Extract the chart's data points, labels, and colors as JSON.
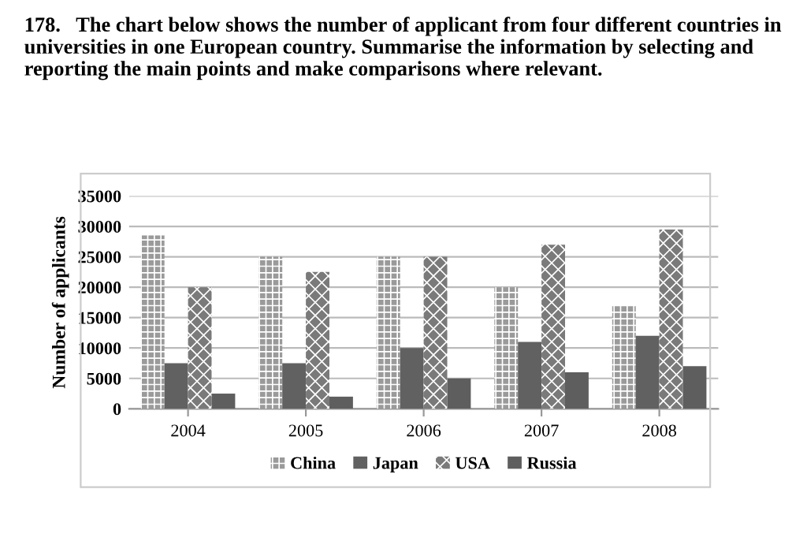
{
  "chart_data": {
    "type": "bar",
    "title": "178.   The chart below shows the number of applicant from four different countries in universities in one European country. Summarise the information by selecting and reporting the main points and make comparisons where relevant.",
    "ylabel": "Number of applicants",
    "categories": [
      "2004",
      "2005",
      "2006",
      "2007",
      "2008"
    ],
    "series": [
      {
        "name": "China",
        "color": "#9a9a9a",
        "values": [
          28500,
          25000,
          25000,
          20000,
          17000
        ]
      },
      {
        "name": "Japan",
        "color": "#616161",
        "values": [
          7500,
          7500,
          10000,
          11000,
          12000
        ]
      },
      {
        "name": "USA",
        "color": "#7a7a7a",
        "values": [
          20000,
          22500,
          25000,
          27000,
          29500
        ]
      },
      {
        "name": "Russia",
        "color": "#5e5e5e",
        "values": [
          2500,
          2000,
          5000,
          6000,
          7000
        ]
      }
    ],
    "ylim": [
      0,
      35000
    ],
    "yticks": [
      0,
      5000,
      10000,
      15000,
      20000,
      25000,
      30000,
      35000
    ],
    "grid": "y",
    "legend": "bottom"
  }
}
